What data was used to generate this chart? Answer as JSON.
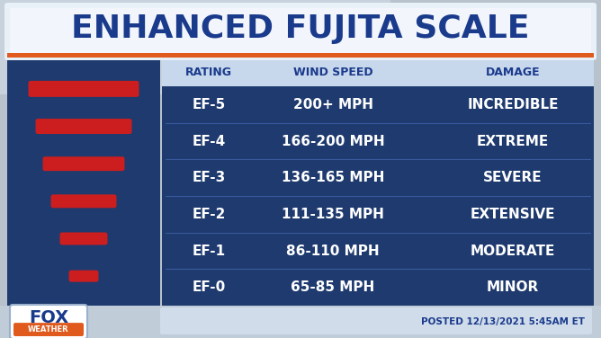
{
  "title": "ENHANCED FUJITA SCALE",
  "title_color": "#1a3a8c",
  "title_bg_top": "#f0f4fa",
  "title_bg_bottom": "#dce8f5",
  "title_stripe_color": "#e05a1e",
  "header": [
    "RATING",
    "WIND SPEED",
    "DAMAGE"
  ],
  "header_bg": "#c8d8ec",
  "header_color": "#1a3a8c",
  "rows": [
    [
      "EF-5",
      "200+ MPH",
      "INCREDIBLE"
    ],
    [
      "EF-4",
      "166-200 MPH",
      "EXTREME"
    ],
    [
      "EF-3",
      "136-165 MPH",
      "SEVERE"
    ],
    [
      "EF-2",
      "111-135 MPH",
      "EXTENSIVE"
    ],
    [
      "EF-1",
      "86-110 MPH",
      "MODERATE"
    ],
    [
      "EF-0",
      "65-85 MPH",
      "MINOR"
    ]
  ],
  "table_bg_color": "#1e3a6e",
  "table_text_color": "#ffffff",
  "row_line_color": "#3a5a9e",
  "tornado_bg_color": "#1e3a6e",
  "tornado_bar_color": "#cc1e1e",
  "bg_color_top": "#b0b8c8",
  "bg_color": "#a0acbc",
  "footer_text": "POSTED 12/13/2021 5:45AM ET",
  "footer_bg": "#d0dcea",
  "fox_text_color": "#1a3a8c",
  "weather_bg": "#e05a1e",
  "title_fontsize": 26,
  "header_fontsize": 9,
  "row_fontsize": 11
}
